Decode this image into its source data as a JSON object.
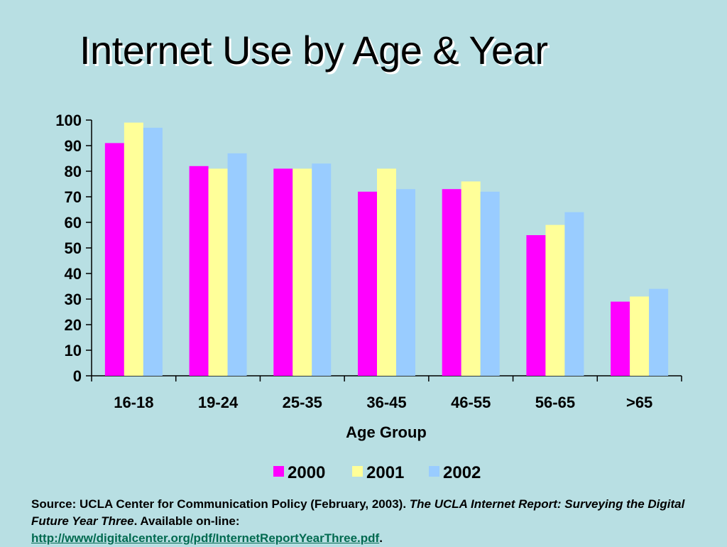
{
  "slide": {
    "title": "Internet Use by Age & Year"
  },
  "chart_data": {
    "type": "bar",
    "title": "Internet Use by Age & Year",
    "xlabel": "Age Group",
    "ylabel": "",
    "ylim": [
      0,
      100
    ],
    "yticks": [
      "0",
      "10",
      "20",
      "30",
      "40",
      "50",
      "60",
      "70",
      "80",
      "90",
      "100"
    ],
    "categories": [
      "16-18",
      "19-24",
      "25-35",
      "36-45",
      "46-55",
      "56-65",
      ">65"
    ],
    "series": [
      {
        "name": "2000",
        "color": "#ff00ff",
        "values": [
          91,
          82,
          81,
          72,
          73,
          55,
          29
        ]
      },
      {
        "name": "2001",
        "color": "#ffff99",
        "values": [
          99,
          81,
          81,
          81,
          76,
          59,
          31
        ]
      },
      {
        "name": "2002",
        "color": "#99ccff",
        "values": [
          97,
          87,
          83,
          73,
          72,
          64,
          34
        ]
      }
    ],
    "legend_position": "bottom",
    "grid": false
  },
  "source": {
    "prefix": "Source: UCLA Center for Communication Policy (February, 2003). ",
    "report_title": "The UCLA Internet Report: Surveying the Digital Future Year Three",
    "middle": ". Available on-line: ",
    "link": "http://www/digitalcenter.org/pdf/InternetReportYearThree.pdf",
    "suffix": "."
  }
}
